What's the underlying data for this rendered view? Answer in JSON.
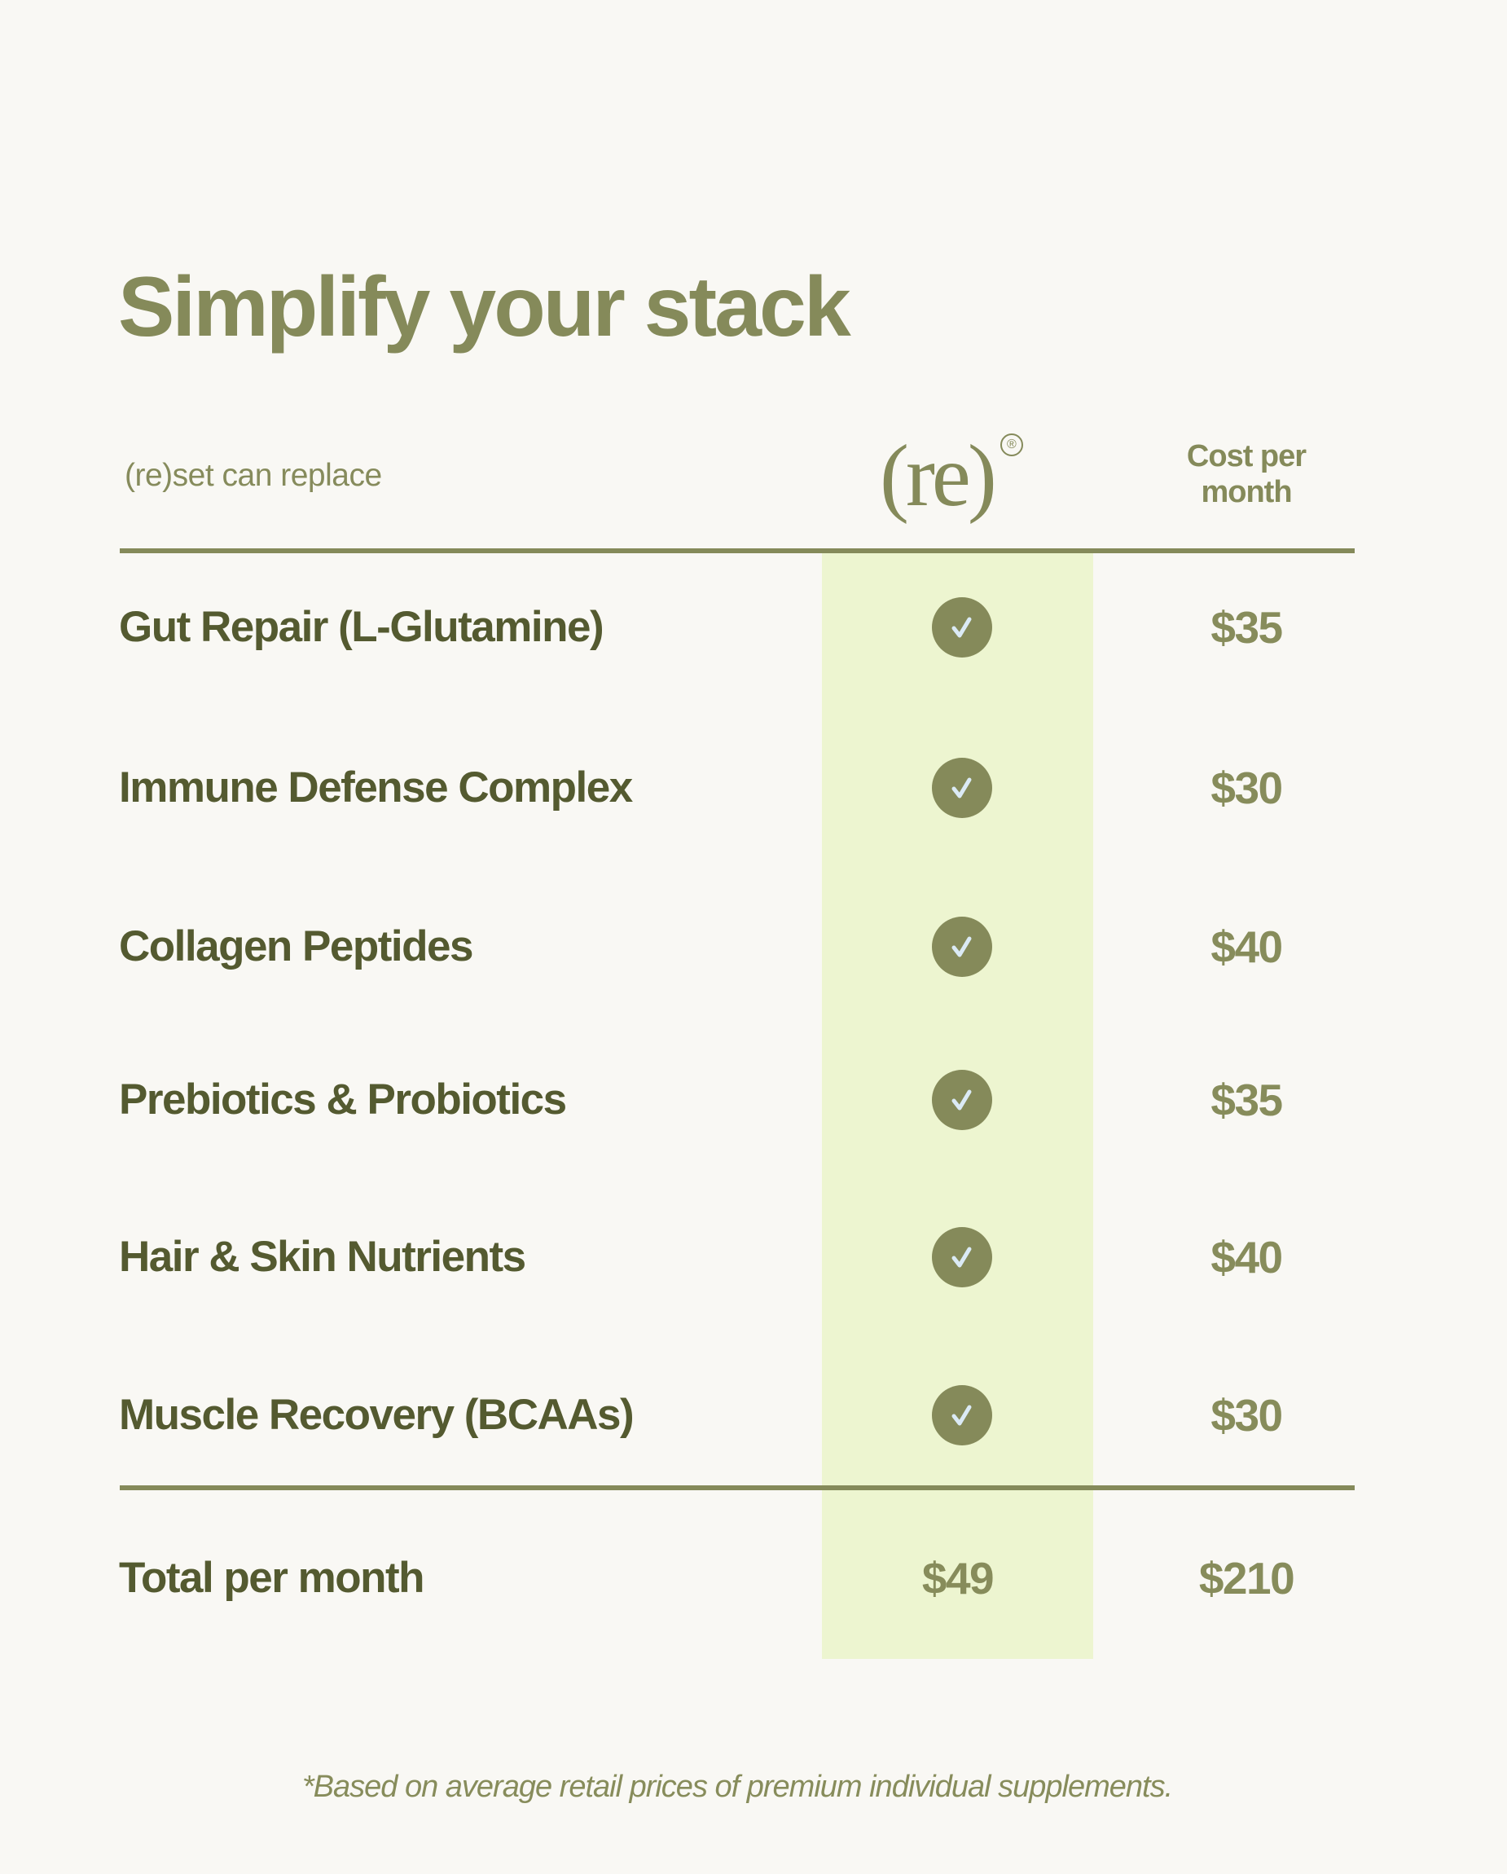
{
  "title": "Simplify your stack",
  "header": {
    "replace_label": "(re)set can replace",
    "brand_logo": "(re)",
    "registered_mark": "®",
    "cost_label_line1": "Cost per",
    "cost_label_line2": "month"
  },
  "rows": [
    {
      "label": "Gut Repair (L-Glutamine)",
      "included": true,
      "price": "$35"
    },
    {
      "label": "Immune Defense Complex",
      "included": true,
      "price": "$30"
    },
    {
      "label": "Collagen Peptides",
      "included": true,
      "price": "$40"
    },
    {
      "label": "Prebiotics & Probiotics",
      "included": true,
      "price": "$35"
    },
    {
      "label": "Hair & Skin Nutrients",
      "included": true,
      "price": "$40"
    },
    {
      "label": "Muscle Recovery (BCAAs)",
      "included": true,
      "price": "$30"
    }
  ],
  "total": {
    "label": "Total per month",
    "reset_price": "$49",
    "separate_price": "$210"
  },
  "footnote": "*Based on average retail prices of premium individual supplements.",
  "colors": {
    "background": "#f9f8f4",
    "olive": "#858a5a",
    "dark_olive": "#545a30",
    "highlight": "#edf5d0",
    "check": "#dbeaf5"
  },
  "icons": {
    "included": "check-circle-icon"
  }
}
